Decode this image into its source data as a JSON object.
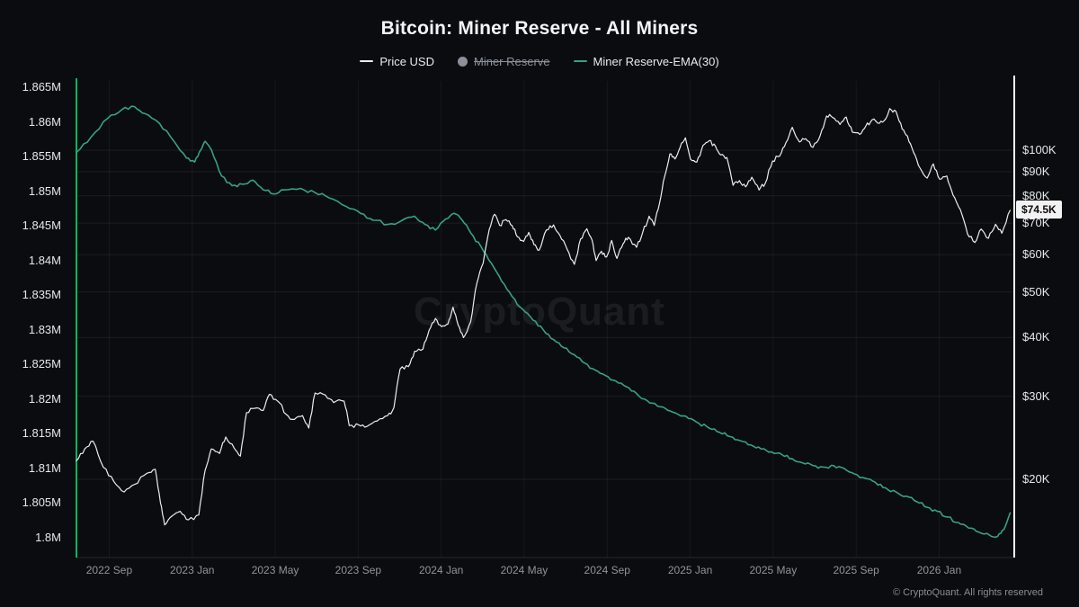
{
  "title": "Bitcoin: Miner Reserve - All Miners",
  "watermark": "CryptoQuant",
  "footer": "© CryptoQuant. All rights reserved",
  "current_price_badge": "$74.5K",
  "colors": {
    "background": "#0b0c10",
    "price_line": "#ededed",
    "ema_line": "#36a27e",
    "left_axis": "#00b85c",
    "right_axis": "#ffffff",
    "grid": "rgba(255,255,255,0.07)",
    "grid_v": "rgba(255,255,255,0.05)",
    "badge_bg": "#f2f2f2",
    "badge_text": "#0b0b0d",
    "x_label": "#8f949b",
    "y_label": "#e4e6e9",
    "disabled_legend": "#8b9099"
  },
  "legend": {
    "items": [
      {
        "label": "Price USD",
        "marker": "line",
        "color": "#ededed",
        "disabled": false
      },
      {
        "label": "Miner Reserve",
        "marker": "dot",
        "color": "#8b9099",
        "disabled": true
      },
      {
        "label": "Miner Reserve-EMA(30)",
        "marker": "line",
        "color": "#36a27e",
        "disabled": false
      }
    ]
  },
  "chart_data": {
    "type": "line",
    "title": "Bitcoin: Miner Reserve - All Miners",
    "x_unit": "months_since_first_point",
    "x_range": [
      0,
      45.2
    ],
    "x_ticks": [
      {
        "label": "2022 Sep",
        "t": 1.58
      },
      {
        "label": "2023 Jan",
        "t": 5.58
      },
      {
        "label": "2023 May",
        "t": 9.58
      },
      {
        "label": "2023 Sep",
        "t": 13.58
      },
      {
        "label": "2024 Jan",
        "t": 17.58
      },
      {
        "label": "2024 May",
        "t": 21.58
      },
      {
        "label": "2024 Sep",
        "t": 25.58
      },
      {
        "label": "2025 Jan",
        "t": 29.58
      },
      {
        "label": "2025 May",
        "t": 33.58
      },
      {
        "label": "2025 Sep",
        "t": 37.58
      },
      {
        "label": "2026 Jan",
        "t": 41.58
      }
    ],
    "left_axis": {
      "label": "Miner Reserve",
      "scale": "linear",
      "min": 1.8,
      "max": 1.865,
      "unit": "M BTC",
      "ticks": [
        {
          "label": "1.865M",
          "value": 1.865
        },
        {
          "label": "1.86M",
          "value": 1.86
        },
        {
          "label": "1.855M",
          "value": 1.855
        },
        {
          "label": "1.85M",
          "value": 1.85
        },
        {
          "label": "1.845M",
          "value": 1.845
        },
        {
          "label": "1.84M",
          "value": 1.84
        },
        {
          "label": "1.835M",
          "value": 1.835
        },
        {
          "label": "1.83M",
          "value": 1.83
        },
        {
          "label": "1.825M",
          "value": 1.825
        },
        {
          "label": "1.82M",
          "value": 1.82
        },
        {
          "label": "1.815M",
          "value": 1.815
        },
        {
          "label": "1.81M",
          "value": 1.81
        },
        {
          "label": "1.805M",
          "value": 1.805
        },
        {
          "label": "1.8M",
          "value": 1.8
        }
      ]
    },
    "right_axis": {
      "label": "Price USD",
      "scale": "log",
      "unit": "K USD",
      "min": 15,
      "max": 140,
      "ticks": [
        {
          "label": "$100K",
          "value": 100
        },
        {
          "label": "$90K",
          "value": 90
        },
        {
          "label": "$80K",
          "value": 80
        },
        {
          "label": "$70K",
          "value": 70
        },
        {
          "label": "$60K",
          "value": 60
        },
        {
          "label": "$50K",
          "value": 50
        },
        {
          "label": "$40K",
          "value": 40
        },
        {
          "label": "$30K",
          "value": 30
        },
        {
          "label": "$20K",
          "value": 20
        }
      ]
    },
    "series": [
      {
        "name": "Price USD",
        "axis": "right",
        "color": "#ededed",
        "visible": true,
        "points": [
          [
            0,
            21.9
          ],
          [
            0.4,
            23.2
          ],
          [
            0.8,
            24.1
          ],
          [
            1.3,
            21.2
          ],
          [
            1.8,
            19.8
          ],
          [
            2.3,
            18.8
          ],
          [
            2.8,
            19.5
          ],
          [
            3.4,
            20.6
          ],
          [
            3.8,
            21.0
          ],
          [
            4.05,
            17.8
          ],
          [
            4.25,
            16.0
          ],
          [
            4.6,
            16.7
          ],
          [
            5.0,
            17.1
          ],
          [
            5.4,
            16.4
          ],
          [
            5.9,
            16.8
          ],
          [
            6.2,
            20.9
          ],
          [
            6.5,
            23.2
          ],
          [
            6.9,
            22.7
          ],
          [
            7.2,
            24.6
          ],
          [
            7.6,
            23.3
          ],
          [
            7.9,
            22.4
          ],
          [
            8.2,
            27.7
          ],
          [
            8.6,
            28.3
          ],
          [
            9.0,
            28.0
          ],
          [
            9.3,
            30.3
          ],
          [
            9.7,
            29.3
          ],
          [
            10.1,
            27.5
          ],
          [
            10.5,
            26.8
          ],
          [
            10.9,
            27.3
          ],
          [
            11.2,
            25.7
          ],
          [
            11.5,
            30.5
          ],
          [
            12.0,
            30.2
          ],
          [
            12.4,
            29.1
          ],
          [
            12.9,
            29.3
          ],
          [
            13.15,
            26.0
          ],
          [
            13.6,
            26.1
          ],
          [
            14.0,
            25.9
          ],
          [
            14.5,
            26.6
          ],
          [
            15.0,
            27.3
          ],
          [
            15.3,
            28.4
          ],
          [
            15.6,
            34.3
          ],
          [
            16.0,
            34.7
          ],
          [
            16.3,
            37.4
          ],
          [
            16.7,
            37.8
          ],
          [
            17.0,
            41.5
          ],
          [
            17.3,
            43.9
          ],
          [
            17.6,
            42.2
          ],
          [
            17.9,
            42.7
          ],
          [
            18.15,
            46.4
          ],
          [
            18.4,
            42.5
          ],
          [
            18.65,
            40.0
          ],
          [
            19.0,
            43.2
          ],
          [
            19.3,
            52.2
          ],
          [
            19.6,
            57.5
          ],
          [
            19.9,
            68.0
          ],
          [
            20.15,
            73.1
          ],
          [
            20.4,
            69.2
          ],
          [
            20.7,
            71.2
          ],
          [
            21.0,
            69.1
          ],
          [
            21.25,
            65.5
          ],
          [
            21.55,
            64.0
          ],
          [
            21.8,
            66.9
          ],
          [
            22.05,
            63.0
          ],
          [
            22.3,
            61.3
          ],
          [
            22.65,
            67.7
          ],
          [
            23.0,
            69.4
          ],
          [
            23.3,
            65.9
          ],
          [
            23.65,
            61.6
          ],
          [
            24.0,
            57.2
          ],
          [
            24.3,
            64.8
          ],
          [
            24.6,
            68.1
          ],
          [
            24.85,
            64.5
          ],
          [
            25.05,
            58.3
          ],
          [
            25.3,
            61.0
          ],
          [
            25.55,
            59.3
          ],
          [
            25.8,
            64.3
          ],
          [
            26.05,
            58.9
          ],
          [
            26.35,
            63.3
          ],
          [
            26.6,
            65.3
          ],
          [
            27.0,
            62.2
          ],
          [
            27.3,
            67.1
          ],
          [
            27.6,
            72.4
          ],
          [
            27.85,
            69.2
          ],
          [
            28.1,
            77.0
          ],
          [
            28.35,
            88.0
          ],
          [
            28.6,
            98.2
          ],
          [
            28.85,
            95.8
          ],
          [
            29.1,
            101.5
          ],
          [
            29.35,
            106.2
          ],
          [
            29.6,
            95.6
          ],
          [
            29.9,
            94.3
          ],
          [
            30.2,
            102.4
          ],
          [
            30.5,
            104.8
          ],
          [
            30.8,
            102.0
          ],
          [
            31.05,
            97.7
          ],
          [
            31.35,
            96.5
          ],
          [
            31.65,
            84.2
          ],
          [
            31.95,
            86.2
          ],
          [
            32.25,
            83.6
          ],
          [
            32.55,
            87.6
          ],
          [
            32.9,
            82.3
          ],
          [
            33.2,
            85.1
          ],
          [
            33.55,
            94.8
          ],
          [
            33.9,
            97.2
          ],
          [
            34.2,
            103.9
          ],
          [
            34.5,
            111.8
          ],
          [
            34.85,
            104.1
          ],
          [
            35.15,
            105.8
          ],
          [
            35.5,
            101.4
          ],
          [
            35.85,
            107.5
          ],
          [
            36.15,
            118.2
          ],
          [
            36.45,
            117.3
          ],
          [
            36.8,
            113.4
          ],
          [
            37.1,
            117.6
          ],
          [
            37.4,
            109.2
          ],
          [
            37.75,
            108.0
          ],
          [
            38.05,
            112.6
          ],
          [
            38.35,
            116.0
          ],
          [
            38.7,
            114.0
          ],
          [
            39.0,
            116.5
          ],
          [
            39.2,
            122.6
          ],
          [
            39.5,
            120.8
          ],
          [
            39.8,
            110.8
          ],
          [
            40.05,
            107.2
          ],
          [
            40.35,
            98.8
          ],
          [
            40.65,
            91.8
          ],
          [
            41.0,
            87.2
          ],
          [
            41.3,
            93.5
          ],
          [
            41.6,
            86.8
          ],
          [
            41.95,
            88.2
          ],
          [
            42.25,
            80.3
          ],
          [
            42.6,
            74.8
          ],
          [
            42.95,
            66.3
          ],
          [
            43.3,
            63.7
          ],
          [
            43.6,
            68.0
          ],
          [
            43.95,
            65.0
          ],
          [
            44.3,
            69.6
          ],
          [
            44.6,
            66.6
          ],
          [
            45.0,
            74.5
          ]
        ]
      },
      {
        "name": "Miner Reserve",
        "axis": "left",
        "color": "#8b9099",
        "visible": false,
        "points": []
      },
      {
        "name": "Miner Reserve-EMA(30)",
        "axis": "left",
        "color": "#36a27e",
        "visible": true,
        "points": [
          [
            0,
            1.8556
          ],
          [
            0.7,
            1.8578
          ],
          [
            1.5,
            1.8605
          ],
          [
            2.2,
            1.8618
          ],
          [
            2.8,
            1.8622
          ],
          [
            3.3,
            1.8612
          ],
          [
            4.0,
            1.8598
          ],
          [
            4.7,
            1.8572
          ],
          [
            5.3,
            1.8548
          ],
          [
            5.7,
            1.8542
          ],
          [
            6.0,
            1.856
          ],
          [
            6.2,
            1.8572
          ],
          [
            6.5,
            1.856
          ],
          [
            7.0,
            1.8522
          ],
          [
            7.5,
            1.8508
          ],
          [
            8.0,
            1.851
          ],
          [
            8.5,
            1.8516
          ],
          [
            9.0,
            1.8502
          ],
          [
            9.5,
            1.8496
          ],
          [
            10.0,
            1.8502
          ],
          [
            10.8,
            1.8504
          ],
          [
            11.5,
            1.8498
          ],
          [
            12.2,
            1.849
          ],
          [
            13.0,
            1.8478
          ],
          [
            13.7,
            1.8468
          ],
          [
            14.3,
            1.8458
          ],
          [
            15.0,
            1.8452
          ],
          [
            15.7,
            1.8458
          ],
          [
            16.3,
            1.8464
          ],
          [
            16.8,
            1.8452
          ],
          [
            17.3,
            1.8444
          ],
          [
            17.8,
            1.846
          ],
          [
            18.2,
            1.8468
          ],
          [
            18.6,
            1.8458
          ],
          [
            19.0,
            1.844
          ],
          [
            19.5,
            1.842
          ],
          [
            20.0,
            1.8396
          ],
          [
            20.5,
            1.837
          ],
          [
            21.0,
            1.8348
          ],
          [
            21.5,
            1.833
          ],
          [
            22.0,
            1.8314
          ],
          [
            22.5,
            1.83
          ],
          [
            23.0,
            1.8286
          ],
          [
            23.5,
            1.8274
          ],
          [
            24.0,
            1.8264
          ],
          [
            24.5,
            1.8252
          ],
          [
            25.0,
            1.8242
          ],
          [
            25.5,
            1.8234
          ],
          [
            26.0,
            1.8226
          ],
          [
            26.5,
            1.8218
          ],
          [
            27.0,
            1.8208
          ],
          [
            27.5,
            1.8198
          ],
          [
            28.0,
            1.819
          ],
          [
            28.5,
            1.8184
          ],
          [
            29.0,
            1.8178
          ],
          [
            29.5,
            1.8172
          ],
          [
            30.0,
            1.8165
          ],
          [
            30.5,
            1.8158
          ],
          [
            31.0,
            1.8152
          ],
          [
            31.5,
            1.8146
          ],
          [
            32.0,
            1.814
          ],
          [
            32.5,
            1.8134
          ],
          [
            33.0,
            1.8128
          ],
          [
            33.5,
            1.8124
          ],
          [
            34.0,
            1.812
          ],
          [
            34.5,
            1.8114
          ],
          [
            35.0,
            1.8108
          ],
          [
            35.5,
            1.8104
          ],
          [
            36.0,
            1.8102
          ],
          [
            36.5,
            1.8104
          ],
          [
            37.0,
            1.81
          ],
          [
            37.5,
            1.8092
          ],
          [
            38.0,
            1.8086
          ],
          [
            38.5,
            1.808
          ],
          [
            39.0,
            1.8072
          ],
          [
            39.5,
            1.8066
          ],
          [
            40.0,
            1.806
          ],
          [
            40.5,
            1.8052
          ],
          [
            41.0,
            1.8044
          ],
          [
            41.5,
            1.8038
          ],
          [
            42.0,
            1.803
          ],
          [
            42.5,
            1.8022
          ],
          [
            43.0,
            1.8014
          ],
          [
            43.5,
            1.8008
          ],
          [
            44.0,
            1.8004
          ],
          [
            44.4,
            1.8002
          ],
          [
            44.7,
            1.8012
          ],
          [
            45.0,
            1.8036
          ]
        ]
      }
    ],
    "annotations": [
      {
        "type": "last_value",
        "series": "Price USD",
        "label": "$74.5K",
        "value": 74.5
      }
    ],
    "legend_position": "top",
    "grid": true
  }
}
